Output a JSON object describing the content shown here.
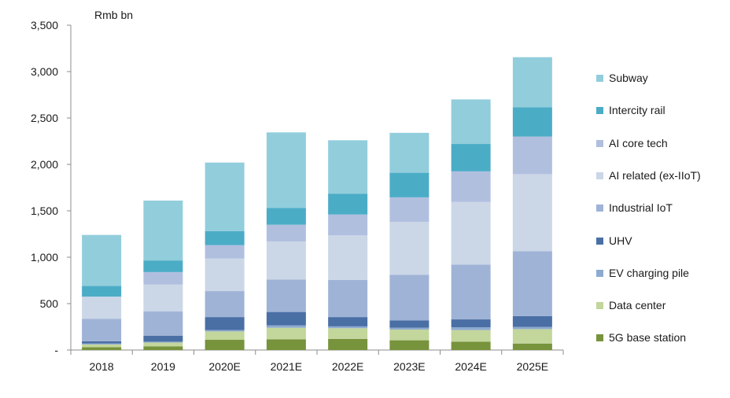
{
  "chart_data": {
    "type": "bar",
    "stacked": true,
    "unit_label": "Rmb bn",
    "categories": [
      "2018",
      "2019",
      "2020E",
      "2021E",
      "2022E",
      "2023E",
      "2024E",
      "2025E"
    ],
    "ylim": [
      0,
      3500
    ],
    "yticks": [
      "-",
      "500",
      "1,000",
      "1,500",
      "2,000",
      "2,500",
      "3,000",
      "3,500"
    ],
    "series": [
      {
        "name": "5G base station",
        "color": "#77933c",
        "values": [
          30,
          40,
          110,
          115,
          120,
          105,
          90,
          70
        ]
      },
      {
        "name": "Data center",
        "color": "#c3d69b",
        "values": [
          30,
          40,
          90,
          125,
          115,
          115,
          125,
          155
        ]
      },
      {
        "name": "EV charging pile",
        "color": "#8eaad0",
        "values": [
          10,
          10,
          15,
          25,
          20,
          20,
          30,
          25
        ]
      },
      {
        "name": "UHV",
        "color": "#4a6fa5",
        "values": [
          25,
          65,
          140,
          145,
          100,
          80,
          85,
          115
        ]
      },
      {
        "name": "Industrial IoT",
        "color": "#9fb3d6",
        "values": [
          240,
          260,
          280,
          350,
          400,
          490,
          590,
          700
        ]
      },
      {
        "name": "AI related (ex-IIoT)",
        "color": "#cbd6e7",
        "values": [
          240,
          290,
          350,
          410,
          480,
          570,
          675,
          830
        ]
      },
      {
        "name": "AI core tech",
        "color": "#b1bfdf",
        "values": [
          0,
          135,
          145,
          180,
          225,
          265,
          330,
          405
        ]
      },
      {
        "name": "Intercity rail",
        "color": "#4bacc6",
        "values": [
          115,
          125,
          150,
          180,
          225,
          265,
          295,
          315
        ]
      },
      {
        "name": "Subway",
        "color": "#92cddc",
        "values": [
          550,
          645,
          740,
          815,
          575,
          430,
          480,
          540
        ]
      }
    ],
    "legend_position": "right",
    "grid": false
  }
}
